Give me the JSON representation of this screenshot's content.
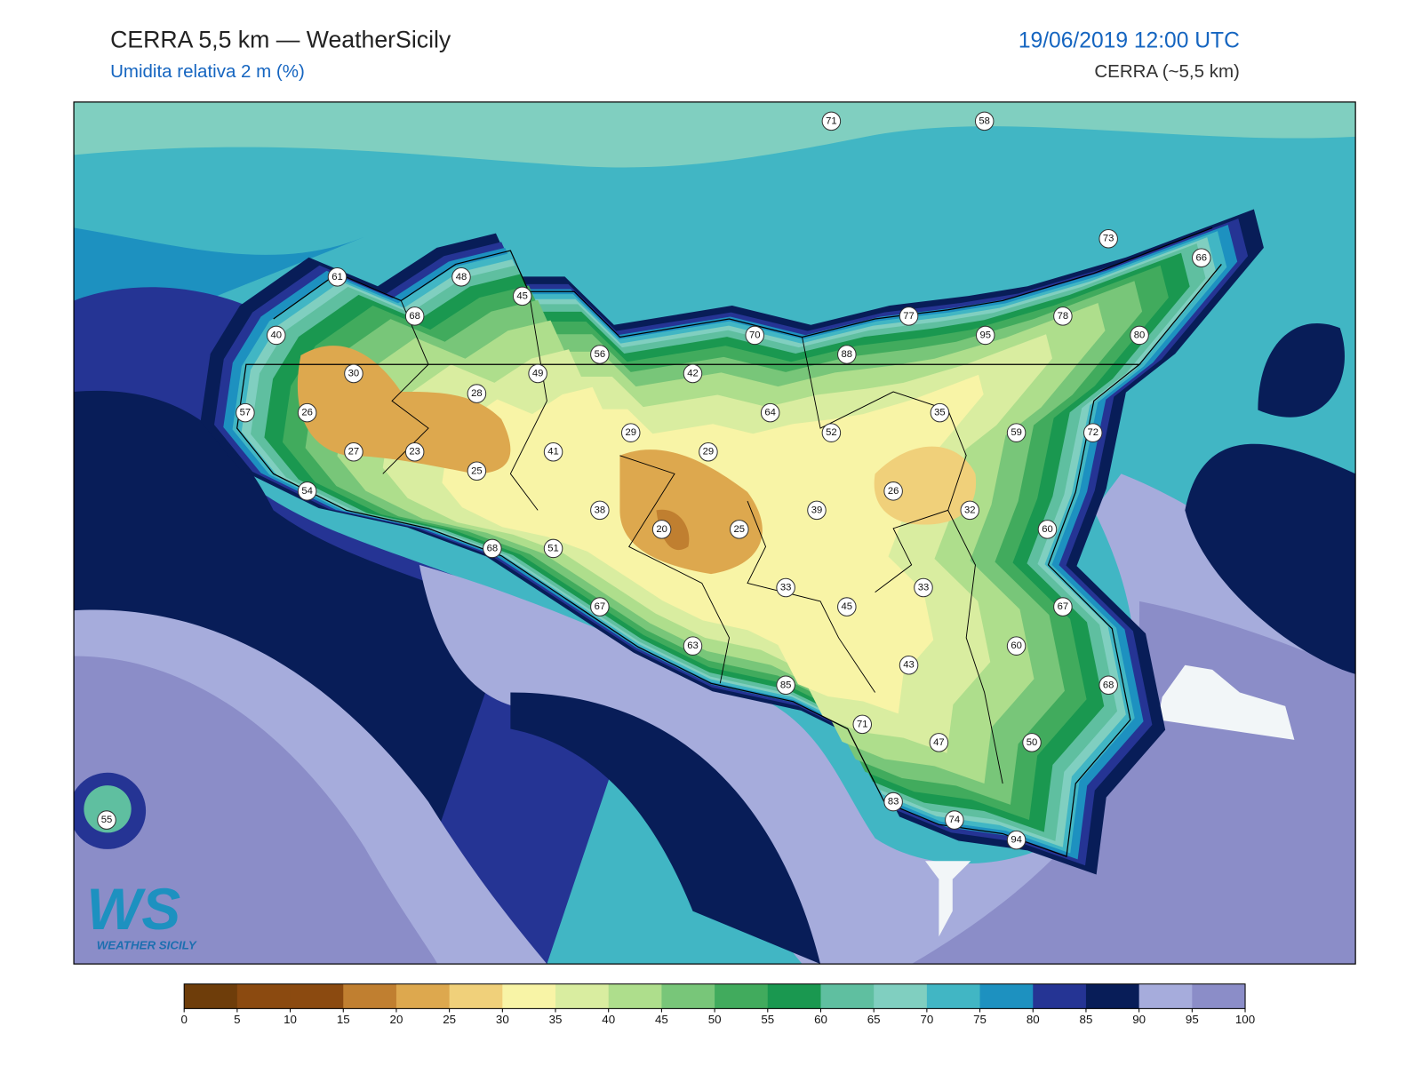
{
  "header": {
    "title": "CERRA 5,5 km — WeatherSicily",
    "subtitle": "Umidita relativa 2 m (%)",
    "datetime": "19/06/2019 12:00 UTC",
    "model": "CERRA (~5,5 km)"
  },
  "stations": [
    71,
    58,
    73,
    66,
    61,
    48,
    45,
    68,
    77,
    78,
    40,
    70,
    95,
    80,
    88,
    56,
    30,
    49,
    42,
    28,
    57,
    26,
    64,
    35,
    29,
    52,
    59,
    72,
    27,
    23,
    41,
    29,
    25,
    54,
    26,
    38,
    39,
    32,
    20,
    25,
    60,
    68,
    51,
    33,
    33,
    67,
    45,
    67,
    63,
    60,
    43,
    85,
    68,
    71,
    47,
    50,
    83,
    74,
    94,
    55
  ],
  "colorbar": {
    "ticks": [
      0,
      5,
      10,
      15,
      20,
      25,
      30,
      35,
      40,
      45,
      50,
      55,
      60,
      65,
      70,
      75,
      80,
      85,
      90,
      95,
      100
    ],
    "colors": [
      "#6e3d0a",
      "#8b4a10",
      "#8b4a10",
      "#c07f30",
      "#dda84e",
      "#f0d07a",
      "#f8f4a6",
      "#d9eda0",
      "#aede8c",
      "#78c679",
      "#41ab5d",
      "#1a9850",
      "#5fbfa0",
      "#80cfc0",
      "#41b6c4",
      "#1d91c0",
      "#253494",
      "#081d58",
      "#a6acdc",
      "#8b8dc8"
    ]
  },
  "logo": {
    "mark": "WS",
    "name": "WEATHER SICILY"
  }
}
